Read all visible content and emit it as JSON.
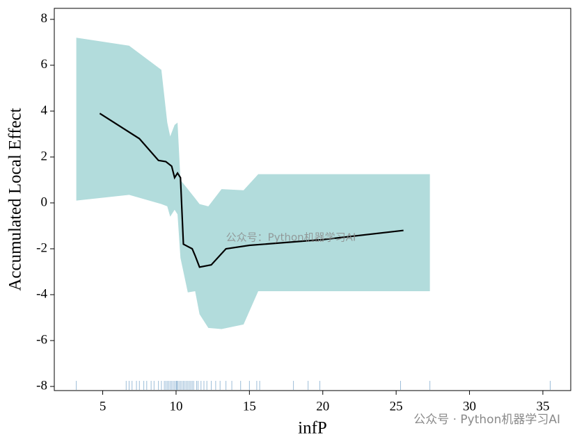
{
  "chart_data": {
    "type": "ale",
    "xlabel": "infP",
    "ylabel": "Accumulated Local Effect",
    "xlim": [
      1.7,
      36.9
    ],
    "ylim": [
      -8.18,
      8.48
    ],
    "xticks": [
      5,
      10,
      15,
      20,
      25,
      30,
      35
    ],
    "yticks": [
      -8,
      -6,
      -4,
      -2,
      0,
      2,
      4,
      6,
      8
    ],
    "line": {
      "color": "#000000",
      "x": [
        4.8,
        7.5,
        8.8,
        9.3,
        9.7,
        9.9,
        10.1,
        10.3,
        10.5,
        10.8,
        11.1,
        11.3,
        11.6,
        12.4,
        13.4,
        15,
        20,
        25.5
      ],
      "y": [
        3.9,
        2.8,
        1.85,
        1.8,
        1.6,
        1.1,
        1.3,
        1.1,
        -1.8,
        -1.9,
        -2.0,
        -2.3,
        -2.8,
        -2.7,
        -2.0,
        -1.85,
        -1.6,
        -1.2
      ]
    },
    "band": {
      "color": "#b2dcdc",
      "x": [
        3.2,
        6.8,
        9.0,
        9.4,
        9.6,
        9.9,
        10.1,
        10.3,
        10.8,
        11.3,
        11.6,
        12.2,
        13.1,
        14.6,
        15.6,
        27.3
      ],
      "upper": [
        7.2,
        6.85,
        5.8,
        3.5,
        2.9,
        3.4,
        3.5,
        1.0,
        0.6,
        0.2,
        -0.05,
        -0.15,
        0.6,
        0.55,
        1.25,
        1.25
      ],
      "lower": [
        0.1,
        0.35,
        -0.05,
        -0.15,
        -0.6,
        -0.3,
        -0.5,
        -2.4,
        -3.9,
        -3.85,
        -4.85,
        -5.45,
        -5.5,
        -5.3,
        -3.85,
        -3.85
      ]
    },
    "rug": {
      "color": "#4a86b8",
      "x": [
        3.2,
        6.6,
        6.8,
        7.0,
        7.3,
        7.5,
        7.8,
        8.0,
        8.3,
        8.5,
        8.8,
        9.0,
        9.2,
        9.3,
        9.4,
        9.5,
        9.6,
        9.7,
        9.8,
        9.9,
        10.0,
        10.05,
        10.1,
        10.2,
        10.3,
        10.4,
        10.5,
        10.6,
        10.7,
        10.8,
        10.9,
        11.0,
        11.1,
        11.2,
        11.4,
        11.5,
        11.7,
        11.9,
        12.1,
        12.4,
        12.7,
        13.0,
        13.4,
        13.8,
        14.4,
        15.0,
        15.5,
        15.7,
        18.0,
        19.0,
        19.8,
        25.3,
        27.3,
        35.5
      ]
    },
    "watermarks": [
      "公众号：Python机器学习AI",
      "公众号 · Python机器学习AI"
    ]
  }
}
